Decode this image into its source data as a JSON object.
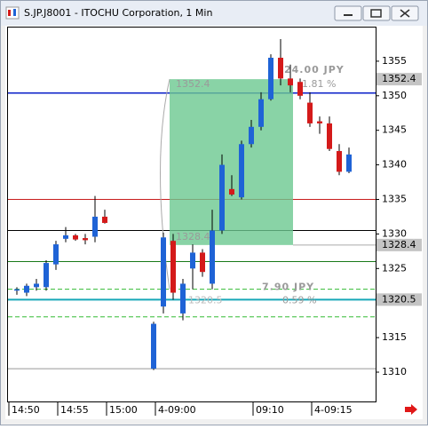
{
  "window": {
    "title": "S.JP.J8001 - ITOCHU Corporation, 1 Min"
  },
  "chart_data": {
    "type": "candlestick",
    "categories": [
      "14:50",
      null,
      null,
      null,
      null,
      "14:55",
      null,
      null,
      null,
      null,
      "15:00",
      null,
      null,
      null,
      null,
      "4-09:00",
      null,
      null,
      null,
      null,
      null,
      null,
      null,
      null,
      null,
      "09:10",
      null,
      null,
      null,
      null,
      null,
      "4-09:15",
      null,
      null,
      null
    ],
    "open": [
      1321.8,
      1321.5,
      1322.3,
      1322.3,
      1325.6,
      1329.3,
      1329.8,
      1329.4,
      1329.6,
      1332.5,
      null,
      null,
      null,
      null,
      1310.5,
      1319.5,
      1329,
      1318.5,
      1325,
      1327.3,
      1322.8,
      1330.5,
      1336.5,
      1335.3,
      1343,
      1345.5,
      1349.5,
      1355.5,
      1352.5,
      1352,
      1349,
      1346.3,
      1346,
      1342,
      1339
    ],
    "high": [
      1322.3,
      1322.8,
      1323.5,
      1326.2,
      1329,
      1331,
      1330,
      1330,
      1335.5,
      1333.5,
      null,
      null,
      null,
      null,
      1317.3,
      1330.2,
      1330,
      1323.5,
      1328.5,
      1327.8,
      1333.5,
      1341.5,
      1338.5,
      1343.5,
      1346.5,
      1350.5,
      1356,
      1358.2,
      1354.5,
      1352.5,
      1350.5,
      1347,
      1347,
      1343,
      1342.5
    ],
    "low": [
      1321.2,
      1321,
      1321.8,
      1321.8,
      1324.8,
      1328.8,
      1329,
      1328.5,
      1328.8,
      1331.5,
      null,
      null,
      null,
      null,
      1310.3,
      1318.5,
      1320.5,
      1317.5,
      1322,
      1323.8,
      1322,
      1330,
      1335.5,
      1335,
      1342.5,
      1345,
      1349.3,
      1351.5,
      1350.5,
      1349.5,
      1345.5,
      1344.5,
      1342,
      1338.5,
      1338.8
    ],
    "close": [
      1322,
      1322.5,
      1322.8,
      1325.8,
      1328.5,
      1329.8,
      1329.2,
      1329.1,
      1332.5,
      1331.6,
      null,
      null,
      null,
      null,
      1317,
      1329.5,
      1321.5,
      1322.8,
      1327.3,
      1324.5,
      1330.5,
      1340,
      1335.7,
      1343,
      1345.5,
      1349.5,
      1355.5,
      1352.5,
      1351.5,
      1350,
      1346,
      1346,
      1342.3,
      1339,
      1341.5
    ],
    "up_color": "#1f63d6",
    "down_color": "#d41a1a",
    "ylim": [
      1305.76,
      1360
    ],
    "yticks": [
      1310,
      1315,
      1320,
      1325,
      1330,
      1335,
      1340,
      1345,
      1350,
      1355
    ],
    "levels": [
      {
        "value": 1350.4,
        "color": "#0a1fc8",
        "width": 1.5,
        "dash": false
      },
      {
        "value": 1335,
        "color": "#c81e1e",
        "width": 1,
        "dash": false
      },
      {
        "value": 1330.5,
        "color": "#000000",
        "width": 1,
        "dash": false
      },
      {
        "value": 1326,
        "color": "#1a7a1a",
        "width": 1,
        "dash": false
      },
      {
        "value": 1322,
        "color": "#33bb33",
        "width": 1,
        "dash": true
      },
      {
        "value": 1320.5,
        "color": "#17a8b8",
        "width": 2,
        "dash": false
      },
      {
        "value": 1318,
        "color": "#33bb33",
        "width": 1,
        "dash": true
      },
      {
        "value": 1310.5,
        "color": "#999999",
        "width": 1,
        "dash": false
      }
    ],
    "price_tags": [
      {
        "value": 1352.4,
        "label": "1352.4"
      },
      {
        "value": 1328.4,
        "label": "1328.4"
      },
      {
        "value": 1320.5,
        "label": "1320.5"
      }
    ],
    "measurements": [
      {
        "from": 16,
        "to": 28,
        "top": 1352.4,
        "bottom": 1328.4,
        "top_label": "1352.4",
        "bottom_label": "1328.4",
        "change": "24.00 JPY",
        "percent": "1.81 %",
        "color": "#6cc890"
      },
      {
        "level": 1320.5,
        "level_label": "1320.5",
        "change": "7.90 JPY",
        "percent": "0.59 %"
      }
    ]
  }
}
